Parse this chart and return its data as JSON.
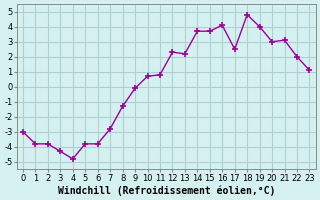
{
  "x": [
    0,
    1,
    2,
    3,
    4,
    5,
    6,
    7,
    8,
    9,
    10,
    11,
    12,
    13,
    14,
    15,
    16,
    17,
    18,
    19,
    20,
    21,
    22,
    23
  ],
  "y": [
    -3.0,
    -3.8,
    -3.8,
    -4.3,
    -4.8,
    -3.8,
    -3.8,
    -2.8,
    -1.3,
    -0.1,
    0.7,
    0.8,
    2.3,
    2.2,
    3.7,
    3.7,
    4.1,
    2.5,
    4.8,
    4.0,
    3.0,
    3.1,
    2.0,
    1.1
  ],
  "line_color": "#9b009b",
  "marker": "+",
  "marker_size": 5,
  "bg_color": "#d4f0f0",
  "grid_color": "#b0d0d0",
  "xlabel": "Windchill (Refroidissement éolien,°C)",
  "xlabel_fontsize": 7,
  "ylabel_ticks": [
    -5,
    -4,
    -3,
    -2,
    -1,
    0,
    1,
    2,
    3,
    4,
    5
  ],
  "xlim": [
    -0.5,
    23.5
  ],
  "ylim": [
    -5.5,
    5.5
  ],
  "xtick_labels": [
    "0",
    "1",
    "2",
    "3",
    "4",
    "5",
    "6",
    "7",
    "8",
    "9",
    "10",
    "11",
    "12",
    "13",
    "14",
    "15",
    "16",
    "17",
    "18",
    "19",
    "20",
    "21",
    "22",
    "23"
  ],
  "tick_fontsize": 6
}
